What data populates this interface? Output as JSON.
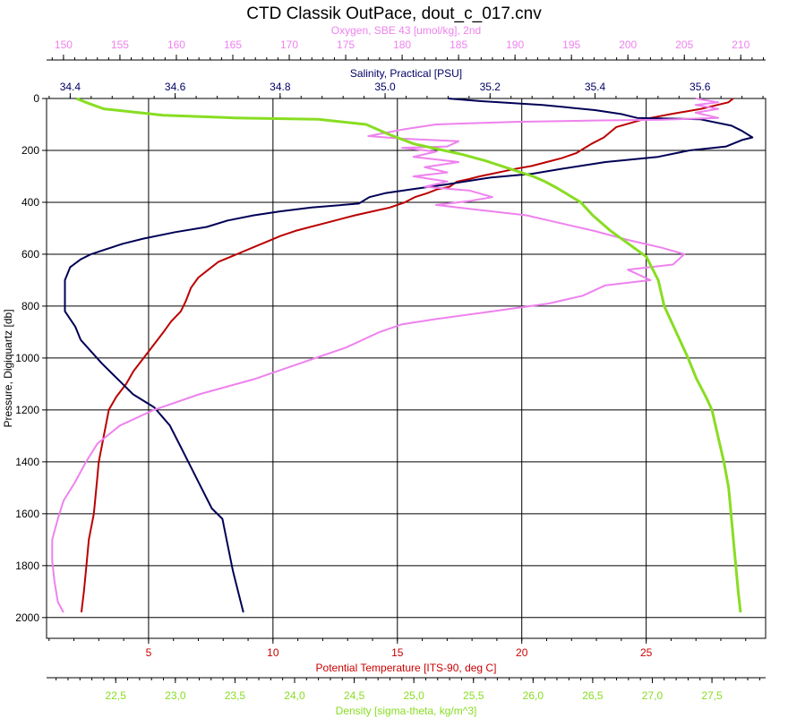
{
  "chart_data": {
    "type": "line",
    "title": "CTD Classik OutPace, dout_c_017.cnv",
    "grid": true,
    "y_axis": {
      "label": "Pressure, Digiquartz [db]",
      "range": [
        0,
        2080
      ],
      "reversed": true,
      "ticks": [
        0,
        200,
        400,
        600,
        800,
        1000,
        1200,
        1400,
        1600,
        1800,
        2000
      ]
    },
    "x_axes": [
      {
        "id": "oxygen",
        "label": "Oxygen, SBE 43 [umol/kg], 2nd",
        "position": "top-outer",
        "color": "#ee82ee",
        "range": [
          148.5,
          212.2
        ],
        "ticks": [
          150,
          155,
          160,
          165,
          170,
          175,
          180,
          185,
          190,
          195,
          200,
          205,
          210
        ]
      },
      {
        "id": "salinity",
        "label": "Salinity, Practical [PSU]",
        "position": "top-inner",
        "color": "#000066",
        "range": [
          34.355,
          35.725
        ],
        "ticks": [
          "34.4",
          "34.6",
          "34.8",
          "35.0",
          "35.2",
          "35.4",
          "35.6"
        ]
      },
      {
        "id": "temperature",
        "label": "Potential Temperature [ITS-90, deg C]",
        "position": "bottom-inner",
        "color": "#cc0000",
        "range": [
          0.9,
          29.8
        ],
        "ticks": [
          5,
          10,
          15,
          20,
          25
        ]
      },
      {
        "id": "density",
        "label": "Density [sigma-theta, kg/m^3]",
        "position": "bottom-outer",
        "color": "#88dd22",
        "range": [
          21.92,
          27.95
        ],
        "ticks": [
          "22,5",
          "23,0",
          "23,5",
          "24,0",
          "24,5",
          "25,0",
          "25,5",
          "26,0",
          "26,5",
          "27,0",
          "27,5"
        ]
      }
    ],
    "series": [
      {
        "axis": "temperature",
        "color": "#bb0000",
        "points": [
          [
            28.5,
            0
          ],
          [
            28.3,
            15
          ],
          [
            27.2,
            40
          ],
          [
            26.0,
            60
          ],
          [
            24.9,
            80
          ],
          [
            23.8,
            110
          ],
          [
            23.3,
            150
          ],
          [
            22.8,
            175
          ],
          [
            22.2,
            210
          ],
          [
            21.6,
            230
          ],
          [
            21.0,
            245
          ],
          [
            20.4,
            260
          ],
          [
            19.8,
            270
          ],
          [
            19.3,
            280
          ],
          [
            18.8,
            290
          ],
          [
            18.3,
            300
          ],
          [
            17.9,
            310
          ],
          [
            17.4,
            320
          ],
          [
            17.1,
            340
          ],
          [
            16.6,
            350
          ],
          [
            16.2,
            365
          ],
          [
            15.7,
            380
          ],
          [
            15.3,
            400
          ],
          [
            14.7,
            420
          ],
          [
            14.0,
            435
          ],
          [
            13.3,
            450
          ],
          [
            12.7,
            465
          ],
          [
            12.1,
            480
          ],
          [
            11.5,
            495
          ],
          [
            10.9,
            510
          ],
          [
            10.3,
            530
          ],
          [
            9.8,
            550
          ],
          [
            9.3,
            570
          ],
          [
            8.8,
            590
          ],
          [
            8.3,
            610
          ],
          [
            7.8,
            630
          ],
          [
            7.4,
            660
          ],
          [
            7.0,
            690
          ],
          [
            6.7,
            730
          ],
          [
            6.5,
            780
          ],
          [
            6.3,
            820
          ],
          [
            5.9,
            860
          ],
          [
            5.6,
            900
          ],
          [
            5.2,
            950
          ],
          [
            4.8,
            1000
          ],
          [
            4.4,
            1050
          ],
          [
            4.1,
            1100
          ],
          [
            3.7,
            1150
          ],
          [
            3.4,
            1200
          ],
          [
            3.2,
            1300
          ],
          [
            3.0,
            1400
          ],
          [
            2.9,
            1500
          ],
          [
            2.8,
            1600
          ],
          [
            2.6,
            1700
          ],
          [
            2.5,
            1800
          ],
          [
            2.4,
            1900
          ],
          [
            2.3,
            1980
          ]
        ]
      },
      {
        "axis": "salinity",
        "color": "#000055",
        "points": [
          [
            35.12,
            0
          ],
          [
            35.18,
            10
          ],
          [
            35.3,
            25
          ],
          [
            35.4,
            45
          ],
          [
            35.45,
            60
          ],
          [
            35.48,
            75
          ],
          [
            35.6,
            80
          ],
          [
            35.66,
            105
          ],
          [
            35.68,
            125
          ],
          [
            35.7,
            150
          ],
          [
            35.68,
            160
          ],
          [
            35.65,
            185
          ],
          [
            35.58,
            200
          ],
          [
            35.52,
            225
          ],
          [
            35.42,
            245
          ],
          [
            35.34,
            270
          ],
          [
            35.28,
            290
          ],
          [
            35.2,
            305
          ],
          [
            35.12,
            330
          ],
          [
            35.05,
            350
          ],
          [
            35.0,
            365
          ],
          [
            34.97,
            380
          ],
          [
            34.95,
            405
          ],
          [
            34.86,
            420
          ],
          [
            34.8,
            435
          ],
          [
            34.75,
            450
          ],
          [
            34.7,
            470
          ],
          [
            34.66,
            495
          ],
          [
            34.6,
            515
          ],
          [
            34.54,
            540
          ],
          [
            34.5,
            560
          ],
          [
            34.47,
            580
          ],
          [
            34.44,
            600
          ],
          [
            34.42,
            620
          ],
          [
            34.4,
            650
          ],
          [
            34.39,
            700
          ],
          [
            34.39,
            760
          ],
          [
            34.39,
            820
          ],
          [
            34.41,
            880
          ],
          [
            34.42,
            930
          ],
          [
            34.44,
            975
          ],
          [
            34.46,
            1020
          ],
          [
            34.49,
            1080
          ],
          [
            34.52,
            1140
          ],
          [
            34.56,
            1190
          ],
          [
            34.59,
            1260
          ],
          [
            34.61,
            1340
          ],
          [
            34.63,
            1420
          ],
          [
            34.65,
            1500
          ],
          [
            34.67,
            1580
          ],
          [
            34.69,
            1620
          ],
          [
            34.7,
            1720
          ],
          [
            34.71,
            1820
          ],
          [
            34.72,
            1900
          ],
          [
            34.73,
            1980
          ]
        ]
      },
      {
        "axis": "oxygen",
        "color": "#ee82ee",
        "points": [
          [
            206,
            0
          ],
          [
            208,
            15
          ],
          [
            206,
            25
          ],
          [
            208,
            40
          ],
          [
            206,
            55
          ],
          [
            208,
            75
          ],
          [
            203,
            82
          ],
          [
            197,
            85
          ],
          [
            190,
            90
          ],
          [
            183,
            100
          ],
          [
            180,
            120
          ],
          [
            177,
            145
          ],
          [
            180,
            155
          ],
          [
            185,
            165
          ],
          [
            184,
            185
          ],
          [
            180,
            190
          ],
          [
            183,
            205
          ],
          [
            181,
            225
          ],
          [
            185,
            245
          ],
          [
            182,
            265
          ],
          [
            184,
            285
          ],
          [
            181,
            300
          ],
          [
            184,
            320
          ],
          [
            182,
            340
          ],
          [
            186,
            355
          ],
          [
            188,
            380
          ],
          [
            186,
            395
          ],
          [
            183,
            410
          ],
          [
            187,
            430
          ],
          [
            191,
            450
          ],
          [
            194,
            480
          ],
          [
            197,
            510
          ],
          [
            200,
            545
          ],
          [
            203,
            575
          ],
          [
            205,
            600
          ],
          [
            204,
            640
          ],
          [
            200,
            660
          ],
          [
            202,
            700
          ],
          [
            198,
            720
          ],
          [
            196,
            760
          ],
          [
            193,
            790
          ],
          [
            188,
            820
          ],
          [
            183,
            850
          ],
          [
            180,
            870
          ],
          [
            178,
            900
          ],
          [
            175,
            960
          ],
          [
            171,
            1020
          ],
          [
            167,
            1080
          ],
          [
            162,
            1140
          ],
          [
            158,
            1200
          ],
          [
            155,
            1260
          ],
          [
            153,
            1330
          ],
          [
            152,
            1400
          ],
          [
            151,
            1480
          ],
          [
            150,
            1550
          ],
          [
            149.5,
            1620
          ],
          [
            149,
            1700
          ],
          [
            149,
            1780
          ],
          [
            149.2,
            1860
          ],
          [
            149.5,
            1940
          ],
          [
            150,
            1980
          ]
        ]
      },
      {
        "axis": "density",
        "color": "#88dd22",
        "points": [
          [
            22.17,
            0
          ],
          [
            22.25,
            15
          ],
          [
            22.4,
            40
          ],
          [
            22.9,
            65
          ],
          [
            23.5,
            75
          ],
          [
            24.2,
            80
          ],
          [
            24.6,
            100
          ],
          [
            24.8,
            140
          ],
          [
            25.0,
            175
          ],
          [
            25.2,
            195
          ],
          [
            25.4,
            215
          ],
          [
            25.6,
            240
          ],
          [
            25.8,
            270
          ],
          [
            26.0,
            300
          ],
          [
            26.1,
            320
          ],
          [
            26.2,
            345
          ],
          [
            26.4,
            400
          ],
          [
            26.5,
            450
          ],
          [
            26.65,
            510
          ],
          [
            26.8,
            560
          ],
          [
            26.95,
            610
          ],
          [
            27.05,
            700
          ],
          [
            27.1,
            800
          ],
          [
            27.2,
            900
          ],
          [
            27.3,
            1000
          ],
          [
            27.37,
            1080
          ],
          [
            27.45,
            1150
          ],
          [
            27.5,
            1200
          ],
          [
            27.55,
            1300
          ],
          [
            27.6,
            1400
          ],
          [
            27.64,
            1500
          ],
          [
            27.66,
            1600
          ],
          [
            27.68,
            1700
          ],
          [
            27.7,
            1800
          ],
          [
            27.72,
            1900
          ],
          [
            27.74,
            1980
          ]
        ]
      }
    ]
  }
}
